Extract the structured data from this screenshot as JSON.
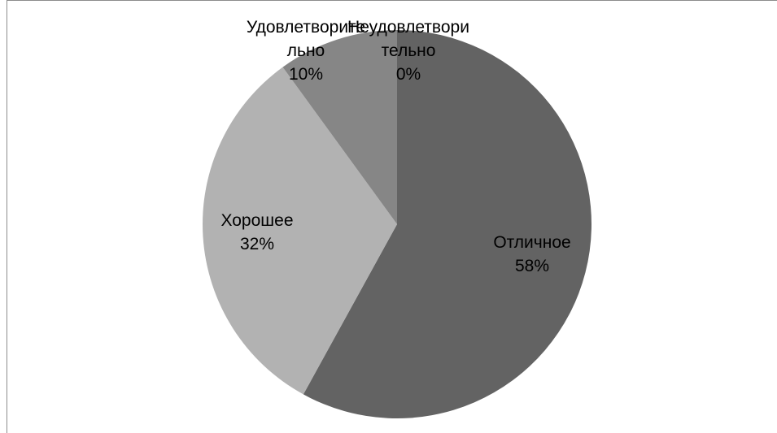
{
  "chart_data": {
    "type": "pie",
    "title": "",
    "slices": [
      {
        "label_lines": [
          "Неудовлетвори",
          "тельно"
        ],
        "percent_label": "0%",
        "value": 0,
        "color": "#3f3f3f"
      },
      {
        "label_lines": [
          "Отличное"
        ],
        "percent_label": "58%",
        "value": 58,
        "color": "#636363"
      },
      {
        "label_lines": [
          "Хорошее"
        ],
        "percent_label": "32%",
        "value": 32,
        "color": "#b2b2b2"
      },
      {
        "label_lines": [
          "Удовлетворите",
          "льно"
        ],
        "percent_label": "10%",
        "value": 10,
        "color": "#868686"
      }
    ],
    "legend": "none",
    "start_angle_deg": 0,
    "direction": "clockwise"
  }
}
